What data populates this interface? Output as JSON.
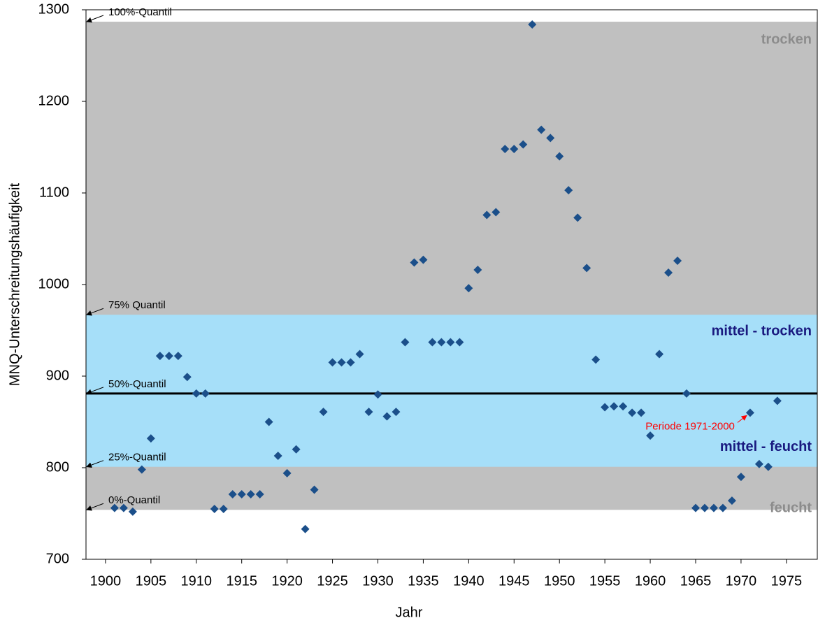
{
  "chart_data": {
    "type": "scatter",
    "x_label": "Jahr",
    "y_label": "MNQ-Unterschreitungshäufigkeit",
    "x": [
      1901,
      1902,
      1903,
      1904,
      1905,
      1906,
      1907,
      1908,
      1909,
      1910,
      1911,
      1912,
      1913,
      1914,
      1915,
      1916,
      1917,
      1918,
      1919,
      1920,
      1921,
      1922,
      1923,
      1924,
      1925,
      1926,
      1927,
      1928,
      1929,
      1930,
      1931,
      1932,
      1933,
      1934,
      1935,
      1936,
      1937,
      1938,
      1939,
      1940,
      1941,
      1942,
      1943,
      1944,
      1945,
      1946,
      1947,
      1948,
      1949,
      1950,
      1951,
      1952,
      1953,
      1954,
      1955,
      1956,
      1957,
      1958,
      1959,
      1960,
      1961,
      1962,
      1963,
      1964,
      1965,
      1966,
      1967,
      1968,
      1969,
      1970,
      1971,
      1972,
      1973,
      1974
    ],
    "values": [
      756,
      756,
      752,
      798,
      832,
      922,
      922,
      922,
      899,
      881,
      881,
      755,
      755,
      771,
      771,
      771,
      771,
      850,
      813,
      794,
      820,
      733,
      776,
      861,
      915,
      915,
      915,
      924,
      861,
      880,
      856,
      861,
      937,
      1024,
      1027,
      937,
      937,
      937,
      937,
      996,
      1016,
      1076,
      1079,
      1148,
      1148,
      1153,
      1284,
      1169,
      1160,
      1140,
      1103,
      1073,
      1018,
      918,
      866,
      867,
      867,
      860,
      860,
      835,
      924,
      1013,
      1026,
      881,
      756,
      756,
      756,
      756,
      764,
      790,
      860,
      804,
      801,
      873
    ],
    "color": "#1b4f8a",
    "xlim": [
      1897.85,
      1978.4
    ],
    "xticks": [
      1900,
      1905,
      1910,
      1915,
      1920,
      1925,
      1930,
      1935,
      1940,
      1945,
      1950,
      1955,
      1960,
      1965,
      1970,
      1975
    ],
    "ylim": [
      700,
      1300
    ],
    "yticks": [
      700,
      800,
      900,
      1000,
      1100,
      1200,
      1300
    ],
    "quantiles": [
      {
        "label": "100%-Quantil",
        "value": 1287
      },
      {
        "label": "75% Quantil",
        "value": 967
      },
      {
        "label": "50%-Quantil",
        "value": 881
      },
      {
        "label": "25%-Quantil",
        "value": 801
      },
      {
        "label": "0%-Quantil",
        "value": 754
      }
    ],
    "outer_band_color": "#c0c0c0",
    "inner_band_color": "#a6dff9",
    "median_color": "#000000",
    "zone_labels": [
      {
        "text": "trocken",
        "color": "#8c8c8c"
      },
      {
        "text": "mittel - trocken",
        "color": "#1a1a80"
      },
      {
        "text": "mittel - feucht",
        "color": "#1a1a80"
      },
      {
        "text": "feucht",
        "color": "#8c8c8c"
      }
    ],
    "annotation": {
      "text": "Periode 1971-2000",
      "x": 1971,
      "color": "#ff0000"
    }
  }
}
